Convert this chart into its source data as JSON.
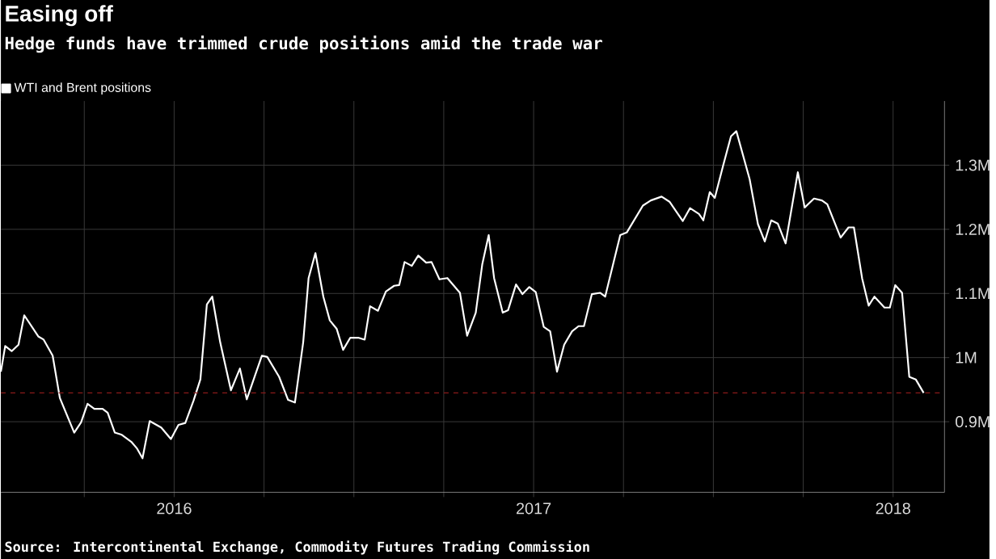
{
  "chart_data": {
    "type": "line",
    "title": "Easing off",
    "subtitle": "Hedge funds have trimmed crude positions amid the trade war",
    "annotations": [
      "Source: Intercontinental Exchange, Commodity Futures Trading Commission"
    ],
    "x": [
      2016.018,
      2016.03,
      2016.048,
      2016.067,
      2016.083,
      2016.122,
      2016.137,
      2016.162,
      2016.182,
      2016.222,
      2016.241,
      2016.259,
      2016.278,
      2016.301,
      2016.315,
      2016.335,
      2016.353,
      2016.382,
      2016.397,
      2016.412,
      2016.432,
      2016.464,
      2016.491,
      2016.512,
      2016.531,
      2016.554,
      2016.573,
      2016.591,
      2016.606,
      2016.628,
      2016.658,
      2016.683,
      2016.702,
      2016.744,
      2016.759,
      2016.792,
      2016.817,
      2016.836,
      2016.859,
      2016.874,
      2016.893,
      2016.915,
      2016.933,
      2016.952,
      2016.97,
      2016.99,
      2017.012,
      2017.03,
      2017.045,
      2017.067,
      2017.089,
      2017.112,
      2017.126,
      2017.141,
      2017.161,
      2017.179,
      2017.201,
      2017.216,
      2017.238,
      2017.26,
      2017.295,
      2017.315,
      2017.339,
      2017.357,
      2017.375,
      2017.39,
      2017.414,
      2017.429,
      2017.451,
      2017.469,
      2017.488,
      2017.506,
      2017.528,
      2017.546,
      2017.565,
      2017.585,
      2017.607,
      2017.625,
      2017.64,
      2017.662,
      2017.685,
      2017.699,
      2017.741,
      2017.759,
      2017.804,
      2017.826,
      2017.856,
      2017.878,
      2017.915,
      2017.935,
      2017.96,
      2017.972,
      2017.99,
      2018.004,
      2018.027,
      2018.049,
      2018.064,
      2018.101,
      2018.124,
      2018.143,
      2018.161,
      2018.179,
      2018.201,
      2018.235,
      2018.254,
      2018.28,
      2018.302,
      2018.317,
      2018.354,
      2018.376,
      2018.391,
      2018.414,
      2018.432,
      2018.448,
      2018.476,
      2018.491,
      2018.506,
      2018.525,
      2018.545,
      2018.563,
      2018.585
    ],
    "series": [
      {
        "name": "WTI and Brent positions",
        "color": "#ffffff",
        "values": [
          0.978,
          1.018,
          1.01,
          1.02,
          1.066,
          1.033,
          1.028,
          1.003,
          0.937,
          0.883,
          0.899,
          0.928,
          0.92,
          0.92,
          0.914,
          0.883,
          0.88,
          0.868,
          0.858,
          0.843,
          0.901,
          0.891,
          0.873,
          0.895,
          0.898,
          0.933,
          0.966,
          1.083,
          1.095,
          1.024,
          0.949,
          0.983,
          0.935,
          1.003,
          1.001,
          0.97,
          0.934,
          0.93,
          1.024,
          1.124,
          1.163,
          1.095,
          1.058,
          1.045,
          1.012,
          1.031,
          1.031,
          1.028,
          1.08,
          1.073,
          1.103,
          1.112,
          1.113,
          1.149,
          1.143,
          1.159,
          1.148,
          1.149,
          1.122,
          1.124,
          1.101,
          1.034,
          1.07,
          1.145,
          1.191,
          1.124,
          1.07,
          1.074,
          1.114,
          1.099,
          1.11,
          1.102,
          1.048,
          1.041,
          0.978,
          1.02,
          1.041,
          1.049,
          1.049,
          1.099,
          1.101,
          1.095,
          1.191,
          1.195,
          1.237,
          1.245,
          1.251,
          1.243,
          1.213,
          1.233,
          1.224,
          1.214,
          1.258,
          1.249,
          1.299,
          1.345,
          1.353,
          1.278,
          1.208,
          1.181,
          1.214,
          1.209,
          1.178,
          1.289,
          1.234,
          1.248,
          1.245,
          1.239,
          1.187,
          1.203,
          1.203,
          1.123,
          1.081,
          1.095,
          1.078,
          1.078,
          1.113,
          1.101,
          0.97,
          0.966,
          0.945
        ]
      }
    ],
    "xlim": [
      2016.018,
      2018.643
    ],
    "ylim": [
      0.79,
      1.4
    ],
    "xticks": [
      {
        "value": 2016.25,
        "label": null
      },
      {
        "value": 2016.5,
        "label": "2016"
      },
      {
        "value": 2016.75,
        "label": null
      },
      {
        "value": 2017.0,
        "label": null
      },
      {
        "value": 2017.25,
        "label": null
      },
      {
        "value": 2017.5,
        "label": "2017"
      },
      {
        "value": 2017.75,
        "label": null
      },
      {
        "value": 2018.0,
        "label": null
      },
      {
        "value": 2018.25,
        "label": null
      },
      {
        "value": 2018.5,
        "label": "2018"
      }
    ],
    "yticks": [
      {
        "value": 0.9,
        "label": "0.9M"
      },
      {
        "value": 1.0,
        "label": "1M"
      },
      {
        "value": 1.1,
        "label": "1.1M"
      },
      {
        "value": 1.2,
        "label": "1.2M"
      },
      {
        "value": 1.3,
        "label": "1.3M"
      }
    ],
    "ref_lines": [
      {
        "axis": "y",
        "value": 0.945,
        "color": "#8b1a1a",
        "line_style": "dashed"
      }
    ],
    "grid": true,
    "legend": "top left",
    "line_style": "solid"
  }
}
